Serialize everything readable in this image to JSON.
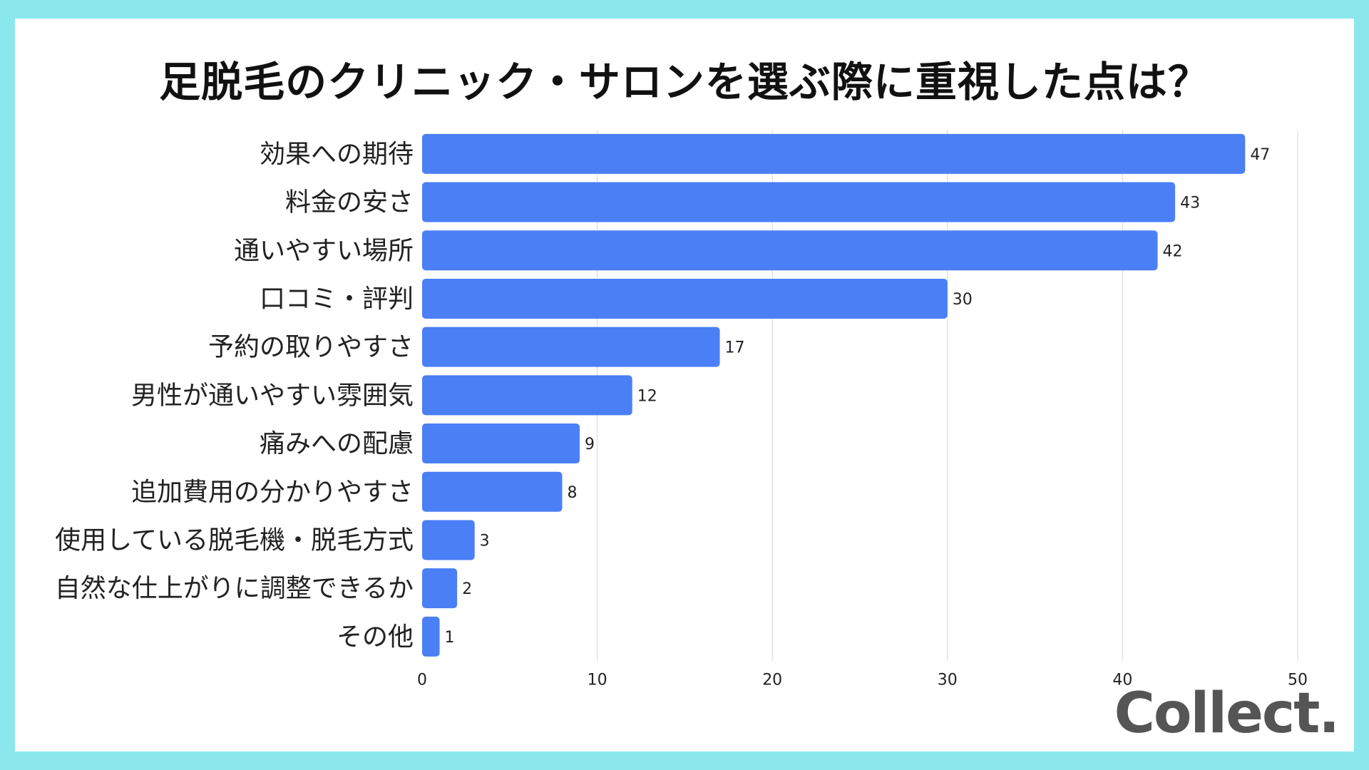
{
  "title": "足脱毛のクリニック・サロンを選ぶ際に重視した点は？",
  "logo_text": "Collect.",
  "colors": {
    "bar": "#4a7ff6",
    "frame": "#8ae8ec",
    "grid": "#e3e3e3",
    "text": "#222222"
  },
  "chart_data": {
    "type": "bar",
    "orientation": "horizontal",
    "categories": [
      "効果への期待",
      "料金の安さ",
      "通いやすい場所",
      "口コミ・評判",
      "予約の取りやすさ",
      "男性が通いやすい雰囲気",
      "痛みへの配慮",
      "追加費用の分かりやすさ",
      "使用している脱毛機・脱毛方式",
      "自然な仕上がりに調整できるか",
      "その他"
    ],
    "values": [
      47,
      43,
      42,
      30,
      17,
      12,
      9,
      8,
      3,
      2,
      1
    ],
    "xlim": [
      0,
      50
    ],
    "xticks": [
      0,
      10,
      20,
      30,
      40,
      50
    ],
    "grid": true,
    "data_labels": true
  }
}
